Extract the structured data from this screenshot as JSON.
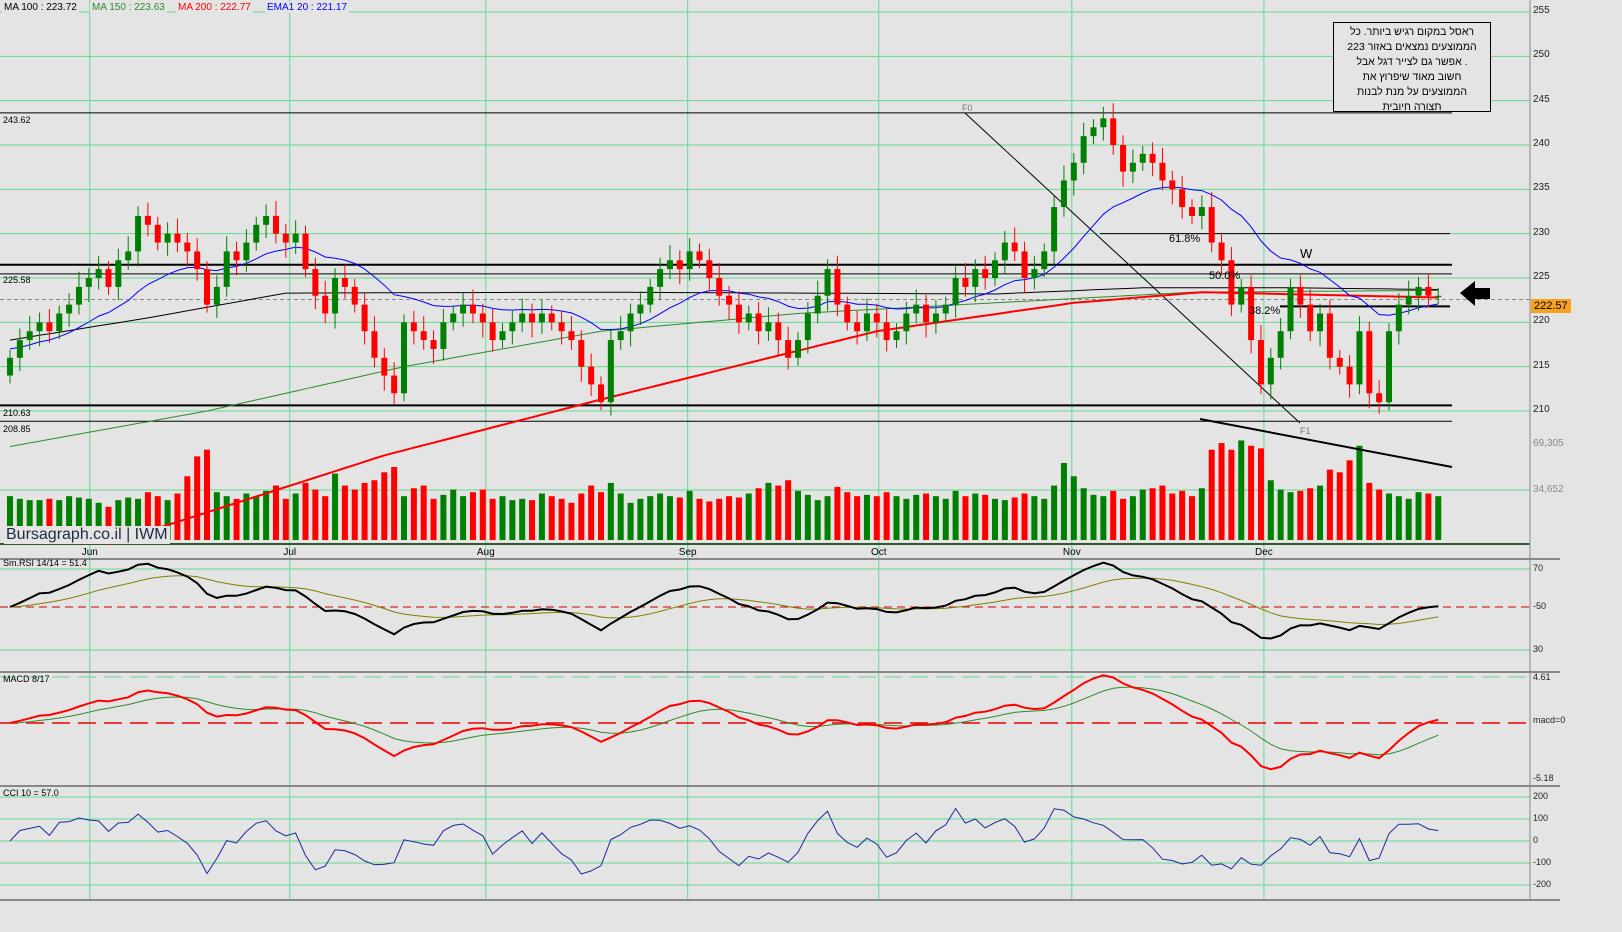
{
  "header": {
    "ma100": "MA 100 : 223.72",
    "ma150": "MA 150 : 223.63",
    "ma200": "MA 200 : 222.77",
    "ema20": "EMA1 20 : 221.17"
  },
  "note": {
    "lines": [
      "ראסל במקום רגיש ביותר. כל",
      "הממוצעים נמצאים באזור 223",
      ". אפשר גם לצייר דגל אבל",
      "חשוב מאוד שיפרוץ את",
      "הממוצעים על מנת לבנות",
      "תצורה חיובית"
    ]
  },
  "logo": "Bursagraph.co.il | IWM",
  "level_labels": {
    "l1": "243.62",
    "l2": "225.58",
    "l3": "210.63",
    "l4": "208.85"
  },
  "fib": {
    "f0": "F0",
    "f1": "F1",
    "p618": "61.8%",
    "p50": "50.0%",
    "p382": "38.2%",
    "w": "W"
  },
  "last_price": "222.57",
  "panels": {
    "rsi_label": "Sm.RSI 14/14 = 51.4",
    "macd_label": "MACD 8/17",
    "cci_label": "CCI 10 = 57.0",
    "macd_zero": "macd=0",
    "macd_top": "4.61",
    "macd_bottom": "-5.18",
    "vol_top": "69,305",
    "vol_mid": "34,652"
  },
  "colors": {
    "up": "#008000",
    "down": "#ff0000",
    "ma100": "#000000",
    "ma150": "#2e8b2e",
    "ma200": "#ff0000",
    "ema20": "#0000ff",
    "grid": "#66d98f"
  },
  "chart_data": {
    "type": "candlestick",
    "price_axis": {
      "min": 205,
      "max": 255,
      "ticks": [
        "255",
        "250",
        "245",
        "240",
        "235",
        "230",
        "225",
        "220",
        "215",
        "210"
      ]
    },
    "months": [
      {
        "label": "Jun",
        "index": 8.1
      },
      {
        "label": "Jul",
        "index": 28.4
      },
      {
        "label": "Aug",
        "index": 48.3
      },
      {
        "label": "Sep",
        "index": 68.8
      },
      {
        "label": "Oct",
        "index": 88.2
      },
      {
        "label": "Nov",
        "index": 107.8
      },
      {
        "label": "Dec",
        "index": 127.3
      }
    ],
    "open0": 214,
    "closes": [
      216,
      218,
      219,
      220,
      219,
      221,
      222,
      224,
      225,
      226,
      224,
      227,
      228,
      232,
      231,
      229,
      230,
      229,
      228,
      226,
      222,
      224,
      228,
      227,
      229,
      231,
      232,
      230,
      229,
      230,
      226,
      223,
      221,
      225,
      224,
      222,
      219,
      216,
      214,
      212,
      220,
      219,
      218,
      217,
      220,
      221,
      222,
      221,
      220,
      218,
      219,
      220,
      221,
      220,
      221,
      220,
      219,
      218,
      215,
      213,
      211,
      218,
      219,
      221,
      222,
      224,
      226,
      227,
      226,
      228,
      227,
      225,
      223,
      222,
      220,
      221,
      219,
      220,
      218,
      216,
      218,
      221,
      223,
      226,
      222,
      220,
      219,
      221,
      220,
      218,
      219,
      221,
      222,
      220,
      221,
      222,
      225,
      224,
      226,
      225,
      227,
      229,
      228,
      225,
      226,
      228,
      233,
      236,
      238,
      241,
      242,
      243,
      240,
      237,
      238,
      239,
      238,
      236,
      235,
      233,
      232,
      233,
      229,
      227,
      222,
      224,
      218,
      213,
      216,
      219,
      224,
      222,
      219,
      221,
      216,
      215,
      213,
      219,
      212,
      211,
      219,
      222,
      223,
      224,
      223,
      223
    ],
    "volumes_k": [
      30,
      28,
      27,
      27,
      28,
      27,
      30,
      29,
      28,
      25,
      22,
      27,
      29,
      28,
      33,
      30,
      27,
      32,
      45,
      60,
      65,
      33,
      30,
      28,
      32,
      30,
      34,
      38,
      28,
      32,
      40,
      35,
      30,
      47,
      38,
      35,
      40,
      42,
      48,
      52,
      30,
      36,
      38,
      28,
      31,
      35,
      30,
      33,
      35,
      28,
      30,
      27,
      28,
      27,
      32,
      30,
      28,
      25,
      32,
      38,
      33,
      40,
      32,
      25,
      28,
      30,
      32,
      30,
      29,
      34,
      28,
      26,
      28,
      30,
      29,
      32,
      36,
      40,
      38,
      42,
      34,
      31,
      27,
      30,
      37,
      33,
      30,
      31,
      30,
      33,
      30,
      28,
      31,
      32,
      30,
      28,
      34,
      30,
      32,
      31,
      28,
      27,
      29,
      32,
      30,
      28,
      38,
      55,
      45,
      36,
      31,
      30,
      34,
      28,
      30,
      35,
      36,
      38,
      32,
      34,
      30,
      36,
      65,
      70,
      65,
      72,
      68,
      66,
      42,
      35,
      33,
      34,
      36,
      38,
      50,
      48,
      57,
      68,
      40,
      35,
      32,
      30,
      28,
      33,
      32,
      30
    ],
    "ma100": [
      [
        0,
        218
      ],
      [
        14,
        220.5
      ],
      [
        28,
        223.3
      ],
      [
        60,
        223.4
      ],
      [
        100,
        223.2
      ],
      [
        115,
        223.9
      ],
      [
        130,
        223.9
      ],
      [
        145,
        223.7
      ]
    ],
    "ma150": [
      [
        0,
        206
      ],
      [
        20,
        210
      ],
      [
        40,
        215
      ],
      [
        60,
        219
      ],
      [
        80,
        221
      ],
      [
        100,
        222.2
      ],
      [
        120,
        223.4
      ],
      [
        145,
        223.6
      ]
    ],
    "ma200": [
      [
        10,
        195
      ],
      [
        38,
        205
      ],
      [
        60,
        211.3
      ],
      [
        88,
        219
      ],
      [
        108,
        222.2
      ],
      [
        121,
        223.4
      ],
      [
        145,
        222.8
      ]
    ],
    "levels": [
      243.62,
      225.58,
      210.63,
      208.85
    ],
    "rsi_ticks": [
      "70",
      "-50",
      "30"
    ],
    "cci_ticks": [
      "200",
      "100",
      "0",
      "-100",
      "-200"
    ]
  }
}
